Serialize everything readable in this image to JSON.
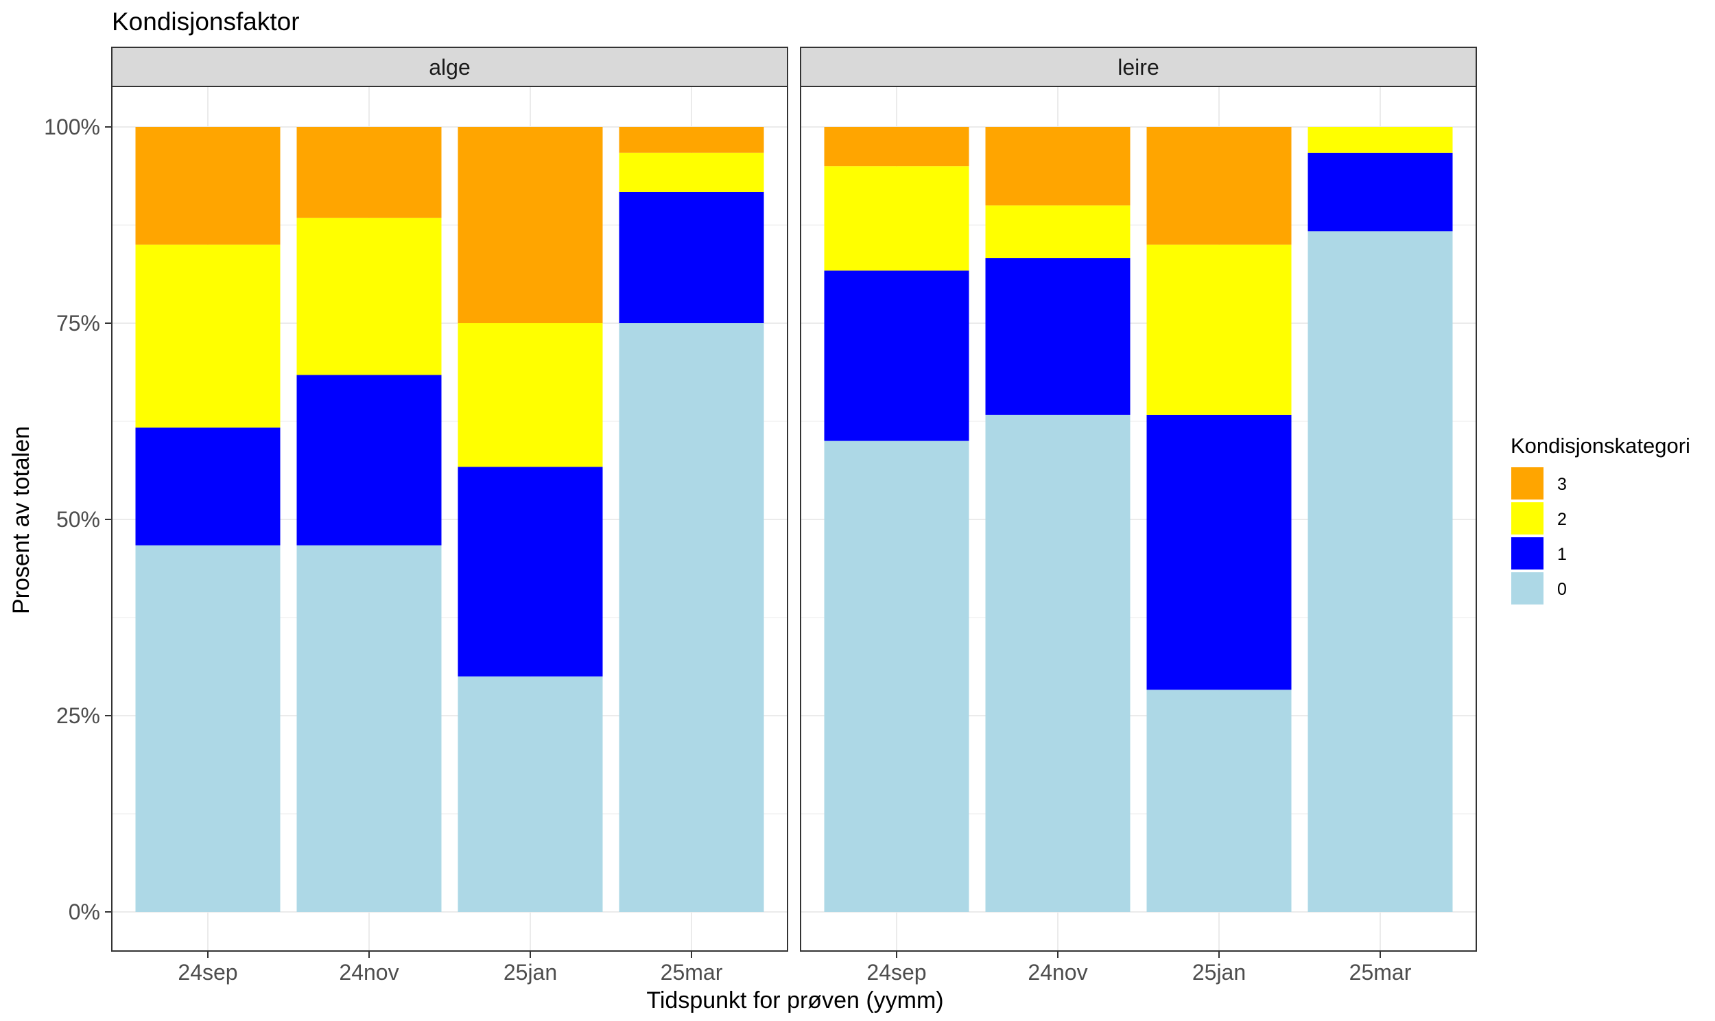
{
  "chart_data": {
    "type": "bar",
    "stacked": "percent",
    "title": "Kondisjonsfaktor",
    "xlabel": "Tidspunkt for prøven (yymm)",
    "ylabel": "Prosent av totalen",
    "ylim": [
      0,
      100
    ],
    "y_ticks": [
      "0%",
      "25%",
      "50%",
      "75%",
      "100%"
    ],
    "y_tick_values": [
      0,
      25,
      50,
      75,
      100
    ],
    "categories": [
      "24sep",
      "24nov",
      "25jan",
      "25mar"
    ],
    "legend": {
      "title": "Kondisjonskategori",
      "position": "right",
      "items": [
        {
          "label": "3",
          "color": "#FFA500"
        },
        {
          "label": "2",
          "color": "#FFFF00"
        },
        {
          "label": "1",
          "color": "#0000FF"
        },
        {
          "label": "0",
          "color": "#ADD8E6"
        }
      ]
    },
    "facets": [
      {
        "name": "alge",
        "series": [
          {
            "name": "0",
            "color": "#ADD8E6",
            "values": [
              46.7,
              46.7,
              30.0,
              75.0
            ]
          },
          {
            "name": "1",
            "color": "#0000FF",
            "values": [
              15.0,
              21.7,
              26.7,
              16.7
            ]
          },
          {
            "name": "2",
            "color": "#FFFF00",
            "values": [
              23.3,
              20.0,
              18.3,
              5.0
            ]
          },
          {
            "name": "3",
            "color": "#FFA500",
            "values": [
              15.0,
              11.6,
              25.0,
              3.3
            ]
          }
        ]
      },
      {
        "name": "leire",
        "series": [
          {
            "name": "0",
            "color": "#ADD8E6",
            "values": [
              60.0,
              63.3,
              28.3,
              86.7
            ]
          },
          {
            "name": "1",
            "color": "#0000FF",
            "values": [
              21.7,
              20.0,
              35.0,
              10.0
            ]
          },
          {
            "name": "2",
            "color": "#FFFF00",
            "values": [
              13.3,
              6.7,
              21.7,
              3.3
            ]
          },
          {
            "name": "3",
            "color": "#FFA500",
            "values": [
              5.0,
              10.0,
              15.0,
              0.0
            ]
          }
        ]
      }
    ]
  }
}
